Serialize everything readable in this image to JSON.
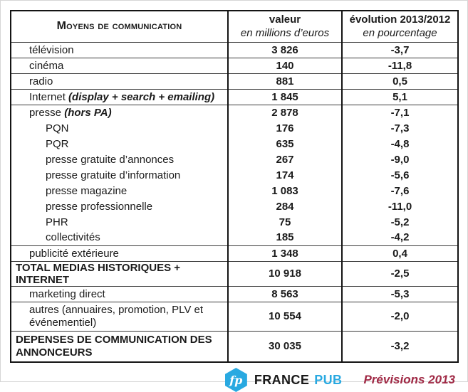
{
  "table": {
    "header": {
      "col1": "Moyens de communication",
      "col2": {
        "line1": "valeur",
        "line2": "en millions d’euros"
      },
      "col3": {
        "line1": "évolution 2013/2012",
        "line2": "en pourcentage"
      }
    },
    "rows": [
      {
        "label": "télévision",
        "value": "3 826",
        "evolution": "-3,7"
      },
      {
        "label": "cinéma",
        "value": "140",
        "evolution": "-11,8"
      },
      {
        "label": "radio",
        "value": "881",
        "evolution": "0,5"
      },
      {
        "label": "Internet",
        "suffix": "(display + search + emailing)",
        "value": "1 845",
        "evolution": "5,1"
      },
      {
        "label": "presse",
        "suffix": "(hors PA)",
        "value": "2 878",
        "evolution": "-7,1"
      },
      {
        "label": "PQN",
        "value": "176",
        "evolution": "-7,3"
      },
      {
        "label": "PQR",
        "value": "635",
        "evolution": "-4,8"
      },
      {
        "label": "presse gratuite d’annonces",
        "value": "267",
        "evolution": "-9,0"
      },
      {
        "label": "presse gratuite d’information",
        "value": "174",
        "evolution": "-5,6"
      },
      {
        "label": "presse magazine",
        "value": "1 083",
        "evolution": "-7,6"
      },
      {
        "label": "presse professionnelle",
        "value": "284",
        "evolution": "-11,0"
      },
      {
        "label": "PHR",
        "value": "75",
        "evolution": "-5,2"
      },
      {
        "label": "collectivités",
        "value": "185",
        "evolution": "-4,2"
      },
      {
        "label": "publicité extérieure",
        "value": "1 348",
        "evolution": "0,4"
      },
      {
        "label": "TOTAL MEDIAS HISTORIQUES + INTERNET",
        "value": "10 918",
        "evolution": "-2,5"
      },
      {
        "label": "marketing direct",
        "value": "8 563",
        "evolution": "-5,3"
      },
      {
        "label": "autres (annuaires, promotion, PLV et événementiel)",
        "value": "10 554",
        "evolution": "-2,0"
      },
      {
        "label": "DEPENSES DE COMMUNICATION DES ANNONCEURS",
        "value": "30 035",
        "evolution": "-3,2"
      }
    ]
  },
  "footer": {
    "logo_monogram": "fp",
    "brand_primary": "FRANCE",
    "brand_secondary": "PUB",
    "note": "Prévisions 2013"
  },
  "colors": {
    "brand_blue": "#29A9E1",
    "note_red": "#A02945",
    "border_black": "#141414"
  }
}
